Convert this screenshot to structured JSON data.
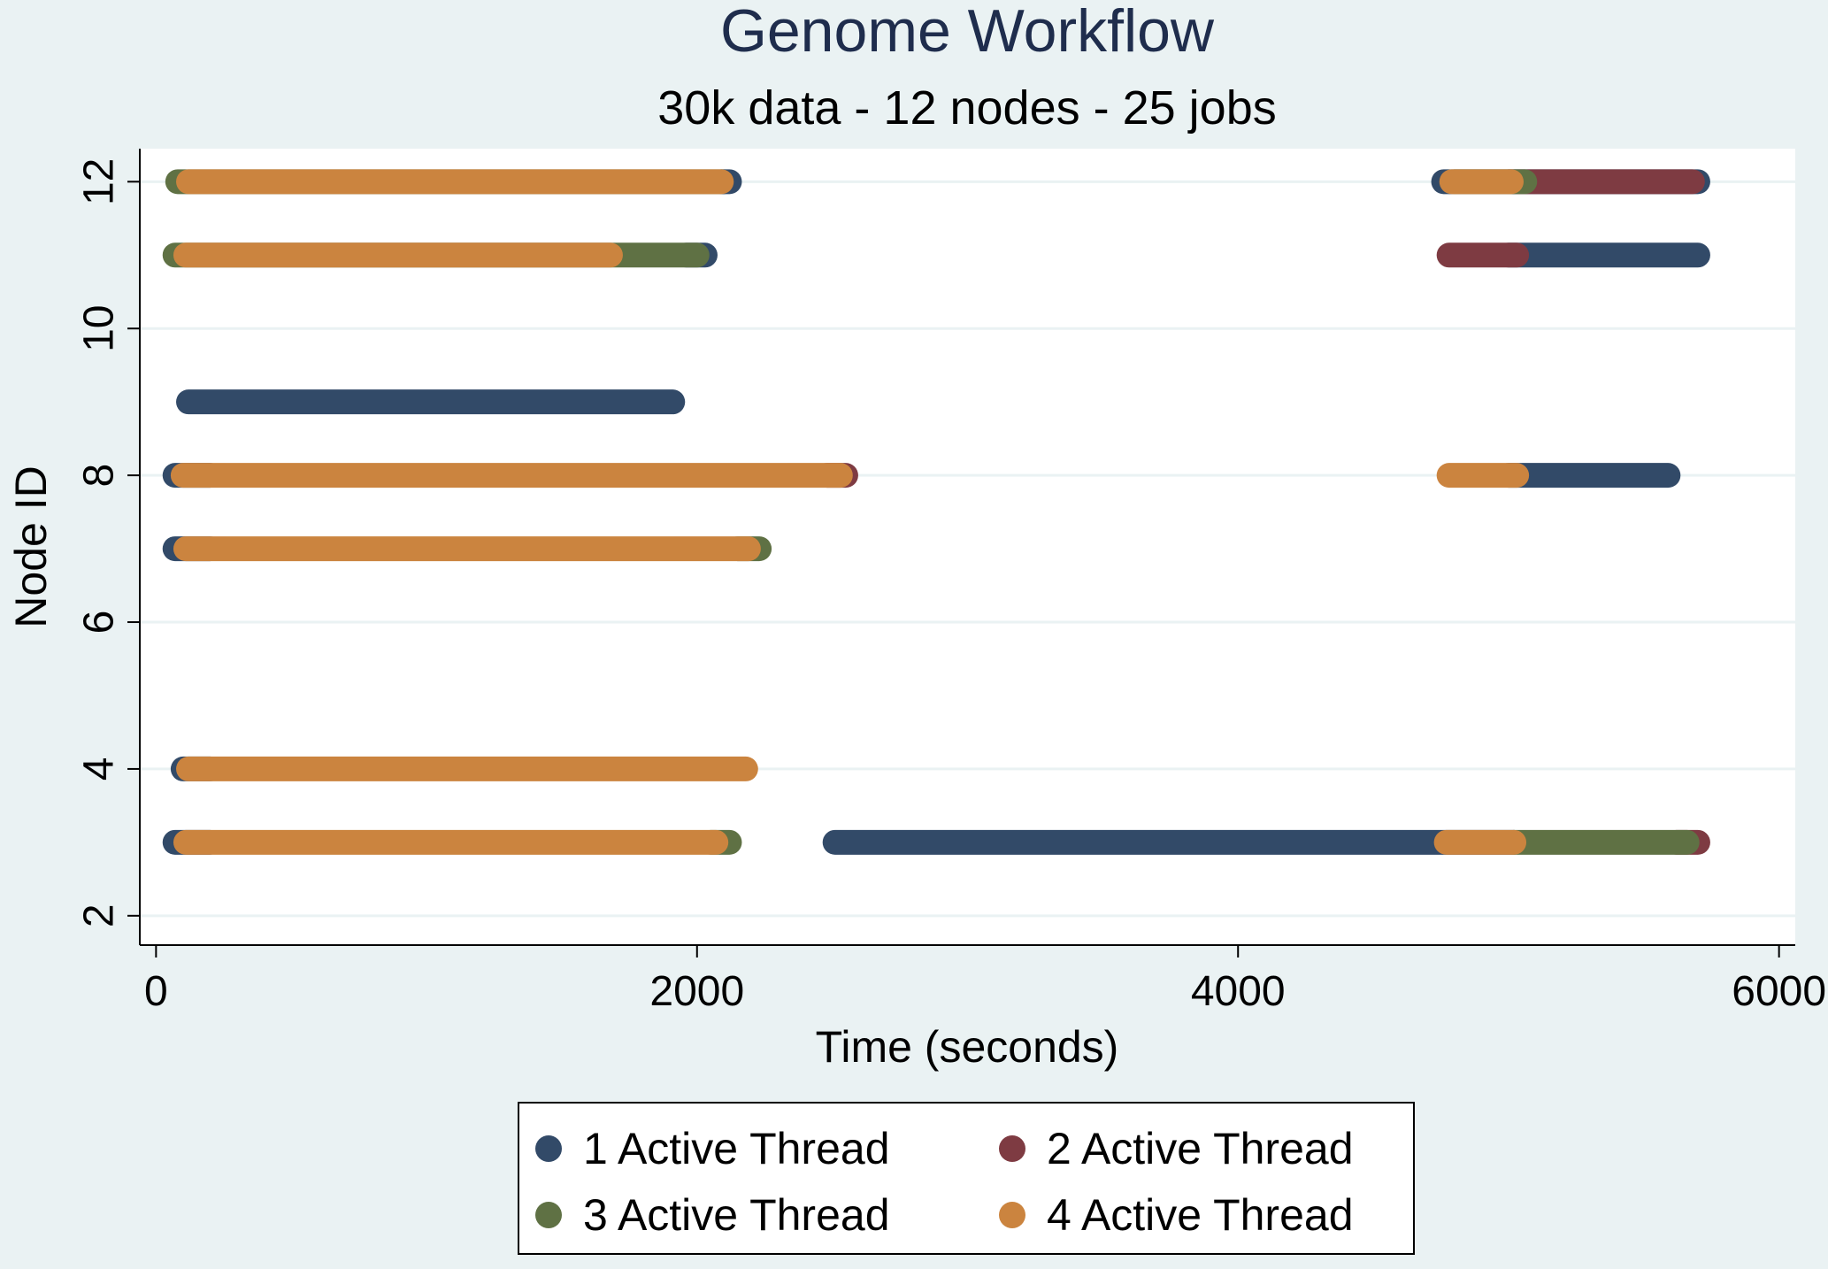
{
  "chart_data": {
    "type": "gantt-scatter",
    "title": "Genome Workflow",
    "subtitle": "30k data - 12 nodes - 25 jobs",
    "xlabel": "Time (seconds)",
    "ylabel": "Node ID",
    "xlim": [
      -60,
      6060
    ],
    "ylim": [
      1.6,
      12.45
    ],
    "xticks": [
      0,
      2000,
      4000,
      6000
    ],
    "yticks": [
      2,
      4,
      6,
      8,
      10,
      12
    ],
    "grid": true,
    "legend_position": "bottom",
    "series": [
      {
        "name": "1 Active Thread",
        "color": "#324a68"
      },
      {
        "name": "2 Active Thread",
        "color": "#7e3b42"
      },
      {
        "name": "3 Active Thread",
        "color": "#5f7144"
      },
      {
        "name": "4 Active Thread",
        "color": "#cb843f"
      }
    ],
    "segments": [
      {
        "node": 12,
        "threads": 3,
        "start": 80,
        "end": 2100
      },
      {
        "node": 12,
        "threads": 1,
        "start": 2090,
        "end": 2120
      },
      {
        "node": 12,
        "threads": 4,
        "start": 120,
        "end": 2090
      },
      {
        "node": 12,
        "threads": 1,
        "start": 4760,
        "end": 5700
      },
      {
        "node": 12,
        "threads": 2,
        "start": 5000,
        "end": 5680
      },
      {
        "node": 12,
        "threads": 3,
        "start": 4800,
        "end": 5060
      },
      {
        "node": 12,
        "threads": 4,
        "start": 4790,
        "end": 5010
      },
      {
        "node": 11,
        "threads": 1,
        "start": 1960,
        "end": 2030
      },
      {
        "node": 11,
        "threads": 3,
        "start": 70,
        "end": 2000
      },
      {
        "node": 11,
        "threads": 4,
        "start": 110,
        "end": 1680
      },
      {
        "node": 11,
        "threads": 1,
        "start": 5000,
        "end": 5700
      },
      {
        "node": 11,
        "threads": 2,
        "start": 4780,
        "end": 5030
      },
      {
        "node": 9,
        "threads": 1,
        "start": 120,
        "end": 1910
      },
      {
        "node": 8,
        "threads": 1,
        "start": 70,
        "end": 200
      },
      {
        "node": 8,
        "threads": 2,
        "start": 2480,
        "end": 2550
      },
      {
        "node": 8,
        "threads": 4,
        "start": 100,
        "end": 2530
      },
      {
        "node": 8,
        "threads": 1,
        "start": 5000,
        "end": 5590
      },
      {
        "node": 8,
        "threads": 4,
        "start": 4780,
        "end": 5030
      },
      {
        "node": 7,
        "threads": 1,
        "start": 70,
        "end": 200
      },
      {
        "node": 7,
        "threads": 3,
        "start": 2150,
        "end": 2230
      },
      {
        "node": 7,
        "threads": 4,
        "start": 110,
        "end": 2190
      },
      {
        "node": 4,
        "threads": 1,
        "start": 100,
        "end": 200
      },
      {
        "node": 4,
        "threads": 4,
        "start": 120,
        "end": 2180
      },
      {
        "node": 3,
        "threads": 1,
        "start": 70,
        "end": 200
      },
      {
        "node": 3,
        "threads": 3,
        "start": 2050,
        "end": 2120
      },
      {
        "node": 3,
        "threads": 4,
        "start": 110,
        "end": 2070
      },
      {
        "node": 3,
        "threads": 1,
        "start": 2510,
        "end": 5020
      },
      {
        "node": 3,
        "threads": 2,
        "start": 5620,
        "end": 5700
      },
      {
        "node": 3,
        "threads": 3,
        "start": 5020,
        "end": 5660
      },
      {
        "node": 3,
        "threads": 4,
        "start": 4770,
        "end": 5020
      }
    ]
  }
}
